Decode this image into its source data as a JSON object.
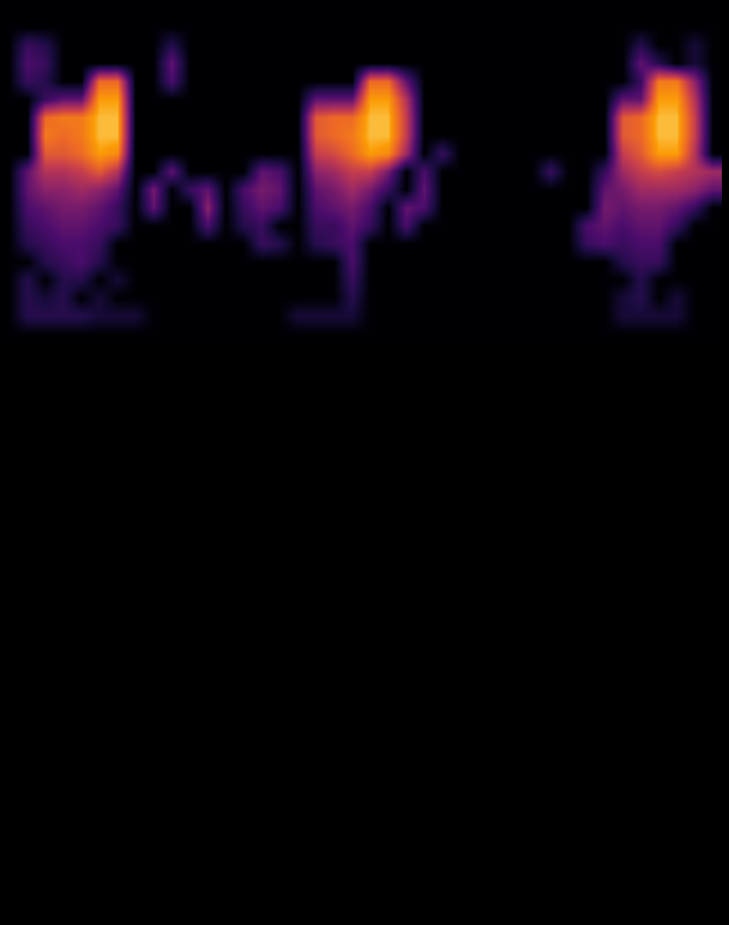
{
  "chart_data": {
    "type": "heatmap",
    "x": [
      0.5,
      1.5,
      2.5,
      3.5,
      4.5,
      5.5,
      6.5,
      7.5,
      8.5,
      9.5,
      10.5,
      11.5,
      12.5,
      13.5,
      14.5,
      15.5,
      16.5,
      17.5,
      18.5,
      19.5,
      20.5,
      21.5,
      22.5,
      23.5,
      24.5,
      25.5,
      26.5,
      27.5,
      28.5,
      29.5,
      30.5,
      31.5,
      32.5,
      33.5,
      34.5,
      35.5,
      36.5,
      37.5,
      38.5,
      39.5
    ],
    "y": [
      50.75,
      49.75,
      48.75,
      47.75,
      46.75,
      45.75,
      44.75,
      43.75,
      42.75,
      41.75,
      40.75,
      39.75,
      38.75,
      37.75,
      36.75,
      35.75,
      34.75,
      33.75,
      32.75
    ],
    "z": [
      [
        0,
        0,
        0,
        0,
        0,
        0,
        0,
        0,
        0,
        0,
        0,
        0,
        0,
        0,
        0,
        0,
        0,
        0,
        0,
        0,
        0,
        0,
        0,
        0,
        0,
        0,
        0,
        0,
        0,
        0,
        0,
        0,
        0,
        0,
        0,
        0,
        0,
        0,
        0,
        0
      ],
      [
        0,
        0,
        0,
        0,
        0,
        0,
        0,
        0,
        0,
        0,
        0,
        0,
        0,
        0,
        0,
        0,
        0,
        0,
        0,
        0,
        0,
        0,
        0,
        0,
        0,
        0,
        0,
        0,
        0,
        0,
        0,
        0,
        0,
        0,
        0,
        0,
        0,
        0,
        0,
        0
      ],
      [
        0,
        0.2,
        0.15,
        0,
        0,
        0,
        0,
        0,
        0,
        0.15,
        0,
        0,
        0,
        0,
        0,
        0,
        0,
        0,
        0,
        0,
        0,
        0,
        0,
        0,
        0,
        0,
        0,
        0,
        0,
        0,
        0,
        0,
        0,
        0,
        0,
        0.15,
        0,
        0,
        0.1,
        0
      ],
      [
        0,
        0.25,
        0.2,
        0,
        0,
        0,
        0,
        0,
        0,
        0.3,
        0,
        0,
        0,
        0,
        0,
        0,
        0,
        0,
        0,
        0,
        0,
        0,
        0,
        0,
        0,
        0,
        0,
        0,
        0,
        0,
        0,
        0,
        0,
        0,
        0,
        0.3,
        0.15,
        0,
        0.1,
        0
      ],
      [
        0,
        0.2,
        0.15,
        0,
        0,
        0.7,
        0.7,
        0,
        0,
        0.25,
        0,
        0,
        0,
        0,
        0,
        0,
        0,
        0,
        0,
        0,
        0.7,
        0.7,
        0.3,
        0,
        0,
        0,
        0,
        0,
        0,
        0,
        0,
        0,
        0,
        0,
        0,
        0.2,
        0.75,
        0.75,
        0.4,
        0
      ],
      [
        0,
        0,
        0.2,
        0.3,
        0.3,
        0.85,
        0.85,
        0,
        0,
        0,
        0,
        0,
        0,
        0,
        0,
        0,
        0,
        0.3,
        0.3,
        0.3,
        0.85,
        0.85,
        0.5,
        0,
        0,
        0,
        0,
        0,
        0,
        0,
        0,
        0,
        0,
        0,
        0.3,
        0.3,
        0.85,
        0.85,
        0.5,
        0
      ],
      [
        0,
        0,
        0.7,
        0.75,
        0.75,
        0.9,
        0.9,
        0,
        0,
        0,
        0,
        0,
        0,
        0,
        0,
        0,
        0,
        0.65,
        0.7,
        0.7,
        0.9,
        0.9,
        0.55,
        0,
        0,
        0,
        0,
        0,
        0,
        0,
        0,
        0,
        0,
        0,
        0.65,
        0.7,
        0.9,
        0.9,
        0.55,
        0
      ],
      [
        0,
        0,
        0.75,
        0.7,
        0.75,
        0.9,
        0.9,
        0,
        0,
        0,
        0,
        0,
        0,
        0,
        0,
        0,
        0,
        0.65,
        0.7,
        0.75,
        0.9,
        0.9,
        0.55,
        0,
        0,
        0,
        0,
        0,
        0,
        0,
        0,
        0,
        0,
        0,
        0.65,
        0.7,
        0.9,
        0.9,
        0.55,
        0
      ],
      [
        0,
        0,
        0.65,
        0.65,
        0.7,
        0.85,
        0.8,
        0,
        0,
        0,
        0,
        0,
        0,
        0,
        0,
        0,
        0,
        0.55,
        0.6,
        0.7,
        0.85,
        0.8,
        0.45,
        0,
        0.2,
        0,
        0,
        0,
        0,
        0,
        0,
        0,
        0,
        0,
        0.55,
        0.65,
        0.85,
        0.85,
        0.5,
        0
      ],
      [
        0,
        0.3,
        0.5,
        0.5,
        0.55,
        0.65,
        0.5,
        0,
        0,
        0.3,
        0,
        0,
        0,
        0,
        0.3,
        0.25,
        0,
        0.4,
        0.45,
        0.55,
        0.55,
        0.35,
        0,
        0.25,
        0,
        0,
        0,
        0,
        0,
        0,
        0.2,
        0,
        0,
        0.2,
        0.45,
        0.55,
        0.6,
        0.55,
        0.5,
        0.45
      ],
      [
        0,
        0.3,
        0.4,
        0.4,
        0.45,
        0.4,
        0.3,
        0,
        0.35,
        0,
        0.2,
        0.3,
        0,
        0.25,
        0.35,
        0.3,
        0,
        0.3,
        0.35,
        0.45,
        0.35,
        0.2,
        0,
        0.3,
        0,
        0,
        0,
        0,
        0,
        0,
        0,
        0,
        0,
        0.3,
        0.35,
        0.45,
        0.45,
        0.45,
        0.4,
        0.3
      ],
      [
        0,
        0.25,
        0.3,
        0.35,
        0.35,
        0.3,
        0.2,
        0,
        0.3,
        0,
        0,
        0.4,
        0,
        0.2,
        0.3,
        0.25,
        0,
        0.25,
        0.3,
        0.35,
        0.25,
        0,
        0.3,
        0.25,
        0,
        0,
        0,
        0,
        0,
        0,
        0,
        0,
        0,
        0.35,
        0.3,
        0.35,
        0.35,
        0.3,
        0.2,
        0
      ],
      [
        0,
        0.2,
        0.25,
        0.3,
        0.3,
        0.25,
        0.2,
        0,
        0,
        0,
        0,
        0.25,
        0,
        0.15,
        0.2,
        0,
        0,
        0.2,
        0.2,
        0.3,
        0.2,
        0,
        0.25,
        0,
        0,
        0,
        0,
        0,
        0,
        0,
        0,
        0,
        0.25,
        0.3,
        0.25,
        0.3,
        0.3,
        0.2,
        0,
        0
      ],
      [
        0,
        0.15,
        0.2,
        0.25,
        0.25,
        0.2,
        0,
        0,
        0,
        0,
        0,
        0,
        0,
        0,
        0.2,
        0.15,
        0,
        0.15,
        0.2,
        0.25,
        0,
        0,
        0,
        0,
        0,
        0,
        0,
        0,
        0,
        0,
        0,
        0,
        0.2,
        0.25,
        0.2,
        0.25,
        0.25,
        0,
        0,
        0
      ],
      [
        0,
        0,
        0.15,
        0.2,
        0.25,
        0.15,
        0,
        0,
        0,
        0,
        0,
        0,
        0,
        0,
        0,
        0,
        0,
        0,
        0,
        0.25,
        0,
        0,
        0,
        0,
        0,
        0,
        0,
        0,
        0,
        0,
        0,
        0,
        0,
        0,
        0.15,
        0.2,
        0.2,
        0,
        0,
        0
      ],
      [
        0,
        0.15,
        0,
        0.15,
        0.15,
        0,
        0.1,
        0,
        0,
        0,
        0,
        0,
        0,
        0,
        0,
        0,
        0,
        0,
        0,
        0.2,
        0,
        0,
        0,
        0,
        0,
        0,
        0,
        0,
        0,
        0,
        0,
        0,
        0,
        0,
        0,
        0.15,
        0,
        0,
        0,
        0
      ],
      [
        0,
        0.15,
        0.1,
        0.15,
        0,
        0.1,
        0,
        0,
        0,
        0,
        0,
        0,
        0,
        0,
        0,
        0,
        0,
        0,
        0,
        0.15,
        0,
        0,
        0,
        0,
        0,
        0,
        0,
        0,
        0,
        0,
        0,
        0,
        0,
        0,
        0.1,
        0.15,
        0,
        0.1,
        0,
        0
      ],
      [
        0,
        0.15,
        0.15,
        0.15,
        0.15,
        0.1,
        0.1,
        0.1,
        0,
        0,
        0,
        0,
        0,
        0,
        0,
        0,
        0.1,
        0.1,
        0.1,
        0.1,
        0,
        0,
        0,
        0,
        0,
        0,
        0,
        0,
        0,
        0,
        0,
        0,
        0,
        0,
        0.1,
        0.1,
        0.1,
        0.1,
        0,
        0
      ],
      [
        0,
        0,
        0,
        0,
        0,
        0,
        0,
        0,
        0,
        0,
        0,
        0,
        0,
        0,
        0,
        0,
        0,
        0,
        0,
        0,
        0,
        0,
        0,
        0,
        0,
        0,
        0,
        0,
        0,
        0,
        0,
        0,
        0,
        0,
        0,
        0,
        0,
        0,
        0,
        0
      ]
    ],
    "xlim": [
      0,
      40.4
    ],
    "ylim": [
      0,
      51.25
    ],
    "zlim": [
      0,
      1
    ],
    "tick_labels": false,
    "grid": false
  }
}
